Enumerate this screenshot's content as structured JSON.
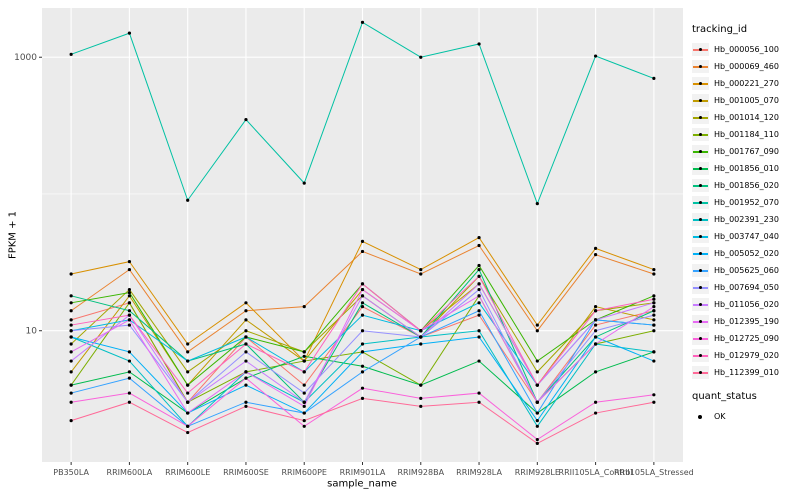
{
  "figure": {
    "background": "#FFFFFF",
    "panel_background": "#EBEBEB",
    "grid_color": "#FFFFFF",
    "tick_label_color": "#4D4D4D",
    "point_color": "#000000"
  },
  "chart_data": {
    "type": "line",
    "title": "",
    "xlabel": "sample_name",
    "ylabel": "FPKM + 1",
    "y_scale": "log10",
    "y_ticks": [
      10,
      1000
    ],
    "y_minor_ticks": [
      1,
      100
    ],
    "ylim_log10": [
      0.04,
      3.36
    ],
    "grid": true,
    "legend_position": "right",
    "point_color": "#000000",
    "categories": [
      "PB350LA",
      "RRIM600LA",
      "RRIM600LE",
      "RRIM600SE",
      "RRIM600PE",
      "RRIM901LA",
      "RRIM928BA",
      "RRIM928LA",
      "RRIM928LE",
      "RRII105LA_Control",
      "RRII105LA_Stressed"
    ],
    "series": [
      {
        "name": "Hb_000056_100",
        "color": "#F8766D",
        "values": [
          12,
          16,
          3,
          9,
          4,
          15,
          9,
          13,
          3,
          11,
          14
        ]
      },
      {
        "name": "Hb_000069_460",
        "color": "#EA8331",
        "values": [
          14,
          28,
          7,
          14,
          15,
          38,
          26,
          42,
          10,
          36,
          26
        ]
      },
      {
        "name": "Hb_000221_270",
        "color": "#D89000",
        "values": [
          26,
          32,
          8,
          16,
          6,
          45,
          28,
          48,
          11,
          40,
          28
        ]
      },
      {
        "name": "Hb_001005_070",
        "color": "#C09B00",
        "values": [
          5,
          18,
          4,
          12,
          6,
          20,
          10,
          22,
          4,
          15,
          12
        ]
      },
      {
        "name": "Hb_001014_120",
        "color": "#A3A500",
        "values": [
          8,
          20,
          5,
          10,
          7,
          18,
          9,
          25,
          5,
          14,
          16
        ]
      },
      {
        "name": "Hb_001184_110",
        "color": "#7CAE00",
        "values": [
          4,
          16,
          3,
          5,
          6,
          7,
          4,
          18,
          3,
          8,
          10
        ]
      },
      {
        "name": "Hb_001767_090",
        "color": "#39B600",
        "values": [
          16,
          19,
          4,
          9,
          7,
          22,
          10,
          30,
          6,
          12,
          18
        ]
      },
      {
        "name": "Hb_001856_010",
        "color": "#00BB4E",
        "values": [
          4,
          5,
          2.5,
          4.5,
          6.5,
          5.5,
          4,
          6,
          2.5,
          5,
          7
        ]
      },
      {
        "name": "Hb_001856_020",
        "color": "#00BF7D",
        "values": [
          18,
          14,
          6,
          8,
          3,
          16,
          9,
          28,
          3,
          9,
          14
        ]
      },
      {
        "name": "Hb_001952_070",
        "color": "#00C1A3",
        "values": [
          1050,
          1500,
          90,
          350,
          120,
          1800,
          1000,
          1250,
          85,
          1020,
          700
        ]
      },
      {
        "name": "Hb_002391_230",
        "color": "#00BFC4",
        "values": [
          9,
          6,
          2,
          5,
          3,
          8,
          9,
          10,
          2,
          8,
          7
        ]
      },
      {
        "name": "Hb_003747_040",
        "color": "#00BAE0",
        "values": [
          10,
          12,
          6,
          9,
          5,
          13,
          10,
          16,
          4,
          12,
          11
        ]
      },
      {
        "name": "Hb_005052_020",
        "color": "#00B0F6",
        "values": [
          9,
          7,
          2.5,
          4,
          2.5,
          7,
          8,
          9,
          2.2,
          9,
          6
        ]
      },
      {
        "name": "Hb_005625_060",
        "color": "#35A2FF",
        "values": [
          3.5,
          4.5,
          2,
          3,
          2.5,
          5,
          9,
          14,
          2.5,
          12,
          11
        ]
      },
      {
        "name": "Hb_007694_050",
        "color": "#9590FF",
        "values": [
          10,
          11,
          3,
          7,
          3.5,
          10,
          9,
          20,
          3,
          10,
          13
        ]
      },
      {
        "name": "Hb_011056_020",
        "color": "#C77CFF",
        "values": [
          6,
          13,
          3,
          6,
          3,
          18,
          9,
          22,
          4,
          12,
          16
        ]
      },
      {
        "name": "Hb_012395_190",
        "color": "#E76BF3",
        "values": [
          7,
          12,
          2.5,
          5,
          2.8,
          20,
          10,
          18,
          3,
          8,
          15
        ]
      },
      {
        "name": "Hb_012725_090",
        "color": "#FA62DB",
        "values": [
          3,
          3.5,
          2,
          4.5,
          2,
          3.8,
          3.2,
          3.5,
          1.6,
          3,
          3.4
        ]
      },
      {
        "name": "Hb_012979_020",
        "color": "#FF62BC",
        "values": [
          11,
          13,
          3.5,
          8,
          5,
          22,
          10,
          25,
          4,
          14,
          17
        ]
      },
      {
        "name": "Hb_112399_010",
        "color": "#FF6A98",
        "values": [
          2.2,
          3,
          1.8,
          2.8,
          2.2,
          3.2,
          2.8,
          3,
          1.5,
          2.5,
          3
        ]
      }
    ],
    "legend": {
      "color_title": "tracking_id",
      "shape_title": "quant_status",
      "shape_items": [
        {
          "label": "OK"
        }
      ]
    }
  }
}
